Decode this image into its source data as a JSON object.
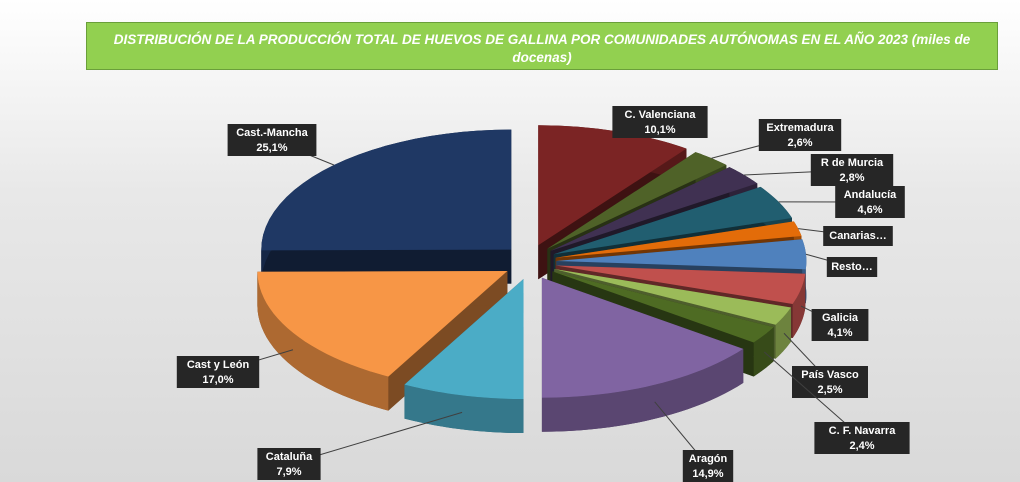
{
  "chart_data": {
    "type": "pie",
    "title": "DISTRIBUCIÓN DE LA PRODUCCIÓN TOTAL DE HUEVOS DE GALLINA POR COMUNIDADES AUTÓNOMAS EN EL AÑO 2023 (miles de docenas)",
    "categories": [
      "C. Valenciana",
      "Extremadura",
      "R de Murcia",
      "Andalucía",
      "Canarias…",
      "Resto…",
      "Galicia",
      "País Vasco",
      "C. F. Navarra",
      "Aragón",
      "Cataluña",
      "Cast y León",
      "Cast.-Mancha"
    ],
    "values": [
      10.1,
      2.6,
      2.8,
      4.6,
      2.0,
      4.0,
      4.1,
      2.5,
      2.4,
      14.9,
      7.9,
      17.0,
      25.1
    ],
    "value_labels": [
      "10,1%",
      "2,6%",
      "2,8%",
      "4,6%",
      null,
      null,
      "4,1%",
      "2,5%",
      "2,4%",
      "14,9%",
      "7,9%",
      "17,0%",
      "25,1%"
    ],
    "colors": [
      "#7b2424",
      "#4f6228",
      "#403152",
      "#215e70",
      "#e36c09",
      "#4f81bd",
      "#c0504d",
      "#9bbb59",
      "#4e6b23",
      "#8064a2",
      "#4bacc6",
      "#f79646",
      "#1f3864"
    ]
  }
}
